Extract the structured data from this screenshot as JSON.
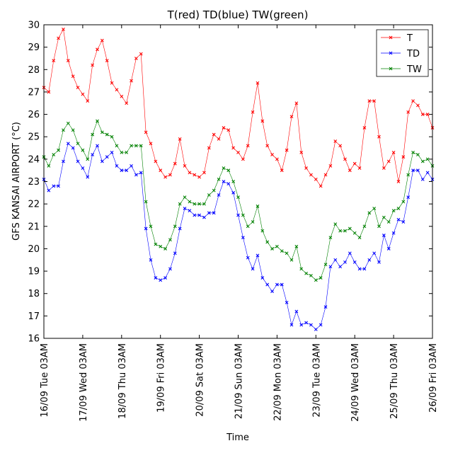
{
  "chart_data": {
    "type": "line",
    "title": "T(red) TD(blue) TW(green)",
    "xlabel": "Time",
    "ylabel": "GFS KANSAI AIRPORT (°C)",
    "ylim": [
      16,
      30
    ],
    "xlim": [
      0,
      240
    ],
    "yticks": [
      16,
      17,
      18,
      19,
      20,
      21,
      22,
      23,
      24,
      25,
      26,
      27,
      28,
      29,
      30
    ],
    "x_ticks": [
      0,
      24,
      48,
      72,
      96,
      120,
      144,
      168,
      192,
      216,
      240
    ],
    "x_tick_labels": [
      "16/09 Tue 03AM",
      "17/09 Wed 03AM",
      "18/09 Thu 03AM",
      "19/09 Fri 03AM",
      "20/09 Sat 03AM",
      "21/09 Sun 03AM",
      "22/09 Mon 03AM",
      "23/09 Tue 03AM",
      "24/09 Wed 03AM",
      "25/09 Thu 03AM",
      "26/09 Fri 03AM"
    ],
    "x_step_hours": 3,
    "grid": false,
    "legend_position": "top-right",
    "series": [
      {
        "name": "T",
        "color": "#ff0000",
        "values": [
          27.2,
          27.0,
          28.4,
          29.4,
          29.8,
          28.4,
          27.7,
          27.2,
          26.9,
          26.6,
          28.2,
          28.9,
          29.3,
          28.4,
          27.4,
          27.1,
          26.8,
          26.5,
          27.5,
          28.5,
          28.7,
          25.2,
          24.7,
          23.9,
          23.5,
          23.2,
          23.3,
          23.8,
          24.9,
          23.7,
          23.4,
          23.3,
          23.2,
          23.4,
          24.5,
          25.1,
          24.9,
          25.4,
          25.3,
          24.5,
          24.3,
          24.0,
          24.6,
          26.1,
          27.4,
          25.7,
          24.6,
          24.2,
          24.0,
          23.5,
          24.4,
          25.9,
          26.5,
          24.3,
          23.6,
          23.3,
          23.1,
          22.8,
          23.3,
          23.7,
          24.8,
          24.6,
          24.0,
          23.5,
          23.8,
          23.6,
          25.4,
          26.6,
          26.6,
          25.0,
          23.6,
          23.9,
          24.3,
          23.0,
          24.1,
          26.1,
          26.6,
          26.4,
          26.0,
          26.0,
          25.4
        ]
      },
      {
        "name": "TD",
        "color": "#0000ff",
        "values": [
          23.1,
          22.6,
          22.8,
          22.8,
          23.9,
          24.7,
          24.5,
          23.9,
          23.6,
          23.2,
          24.2,
          24.6,
          23.9,
          24.1,
          24.3,
          23.7,
          23.5,
          23.5,
          23.7,
          23.3,
          23.4,
          20.9,
          19.5,
          18.7,
          18.6,
          18.7,
          19.1,
          19.8,
          20.9,
          21.8,
          21.7,
          21.5,
          21.5,
          21.4,
          21.6,
          21.6,
          22.4,
          23.0,
          22.9,
          22.5,
          21.5,
          20.5,
          19.6,
          19.1,
          19.7,
          18.7,
          18.4,
          18.1,
          18.4,
          18.4,
          17.6,
          16.6,
          17.2,
          16.6,
          16.7,
          16.6,
          16.4,
          16.6,
          17.4,
          19.2,
          19.5,
          19.2,
          19.4,
          19.8,
          19.4,
          19.1,
          19.1,
          19.5,
          19.8,
          19.4,
          20.6,
          20.0,
          20.7,
          21.3,
          21.2,
          22.3,
          23.5,
          23.5,
          23.1,
          23.4,
          23.1
        ]
      },
      {
        "name": "TW",
        "color": "#008000",
        "values": [
          24.1,
          23.7,
          24.2,
          24.4,
          25.3,
          25.6,
          25.3,
          24.7,
          24.4,
          24.0,
          25.1,
          25.7,
          25.2,
          25.1,
          25.0,
          24.6,
          24.3,
          24.3,
          24.6,
          24.6,
          24.6,
          22.1,
          21.0,
          20.2,
          20.1,
          20.0,
          20.4,
          21.0,
          22.0,
          22.3,
          22.1,
          22.0,
          22.0,
          22.0,
          22.4,
          22.6,
          23.1,
          23.6,
          23.5,
          23.0,
          22.3,
          21.5,
          21.0,
          21.2,
          21.9,
          20.8,
          20.3,
          20.0,
          20.1,
          19.9,
          19.8,
          19.5,
          20.1,
          19.1,
          18.9,
          18.8,
          18.6,
          18.7,
          19.3,
          20.5,
          21.1,
          20.8,
          20.8,
          20.9,
          20.7,
          20.5,
          21.0,
          21.6,
          21.8,
          21.0,
          21.4,
          21.2,
          21.7,
          21.8,
          22.1,
          23.3,
          24.3,
          24.2,
          23.9,
          24.0,
          23.7
        ]
      }
    ]
  }
}
